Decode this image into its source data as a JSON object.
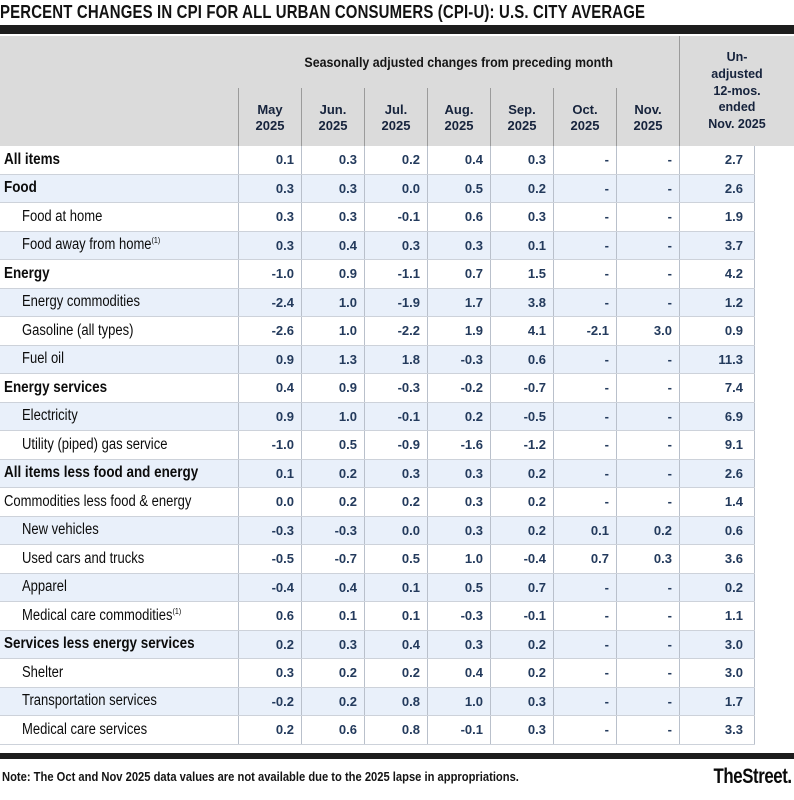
{
  "title": "PERCENT CHANGES IN CPI FOR ALL URBAN CONSUMERS (CPI-U): U.S. CITY AVERAGE",
  "header": {
    "group_label": "Seasonally adjusted changes from preceding month",
    "columns": [
      {
        "month": "May",
        "year": "2025"
      },
      {
        "month": "Jun.",
        "year": "2025"
      },
      {
        "month": "Jul.",
        "year": "2025"
      },
      {
        "month": "Aug.",
        "year": "2025"
      },
      {
        "month": "Sep.",
        "year": "2025"
      },
      {
        "month": "Oct.",
        "year": "2025"
      },
      {
        "month": "Nov.",
        "year": "2025"
      }
    ],
    "unadjusted_label_lines": [
      "Un-",
      "adjusted",
      "12-mos.",
      "ended",
      "Nov. 2025"
    ]
  },
  "chart_data": {
    "type": "table",
    "title": "Percent changes in CPI for All Urban Consumers (CPI-U): U.S. City Average",
    "columns": [
      "May 2025",
      "Jun. 2025",
      "Jul. 2025",
      "Aug. 2025",
      "Sep. 2025",
      "Oct. 2025",
      "Nov. 2025",
      "Un-adjusted 12-mos. ended Nov. 2025"
    ],
    "rows": [
      {
        "label": "All items",
        "bold": true,
        "indent": false,
        "values": [
          "0.1",
          "0.3",
          "0.2",
          "0.4",
          "0.3",
          "-",
          "-",
          "2.7"
        ]
      },
      {
        "label": "Food",
        "bold": true,
        "indent": false,
        "values": [
          "0.3",
          "0.3",
          "0.0",
          "0.5",
          "0.2",
          "-",
          "-",
          "2.6"
        ]
      },
      {
        "label": "Food at home",
        "bold": false,
        "indent": true,
        "values": [
          "0.3",
          "0.3",
          "-0.1",
          "0.6",
          "0.3",
          "-",
          "-",
          "1.9"
        ]
      },
      {
        "label": "Food away from home",
        "sup": "(1)",
        "bold": false,
        "indent": true,
        "values": [
          "0.3",
          "0.4",
          "0.3",
          "0.3",
          "0.1",
          "-",
          "-",
          "3.7"
        ]
      },
      {
        "label": "Energy",
        "bold": true,
        "indent": false,
        "values": [
          "-1.0",
          "0.9",
          "-1.1",
          "0.7",
          "1.5",
          "-",
          "-",
          "4.2"
        ]
      },
      {
        "label": "Energy commodities",
        "bold": false,
        "indent": true,
        "values": [
          "-2.4",
          "1.0",
          "-1.9",
          "1.7",
          "3.8",
          "-",
          "-",
          "1.2"
        ]
      },
      {
        "label": "Gasoline (all types)",
        "bold": false,
        "indent": true,
        "values": [
          "-2.6",
          "1.0",
          "-2.2",
          "1.9",
          "4.1",
          "-2.1",
          "3.0",
          "0.9"
        ]
      },
      {
        "label": "Fuel oil",
        "bold": false,
        "indent": true,
        "values": [
          "0.9",
          "1.3",
          "1.8",
          "-0.3",
          "0.6",
          "-",
          "-",
          "11.3"
        ]
      },
      {
        "label": "Energy services",
        "bold": true,
        "indent": false,
        "values": [
          "0.4",
          "0.9",
          "-0.3",
          "-0.2",
          "-0.7",
          "-",
          "-",
          "7.4"
        ]
      },
      {
        "label": "Electricity",
        "bold": false,
        "indent": true,
        "values": [
          "0.9",
          "1.0",
          "-0.1",
          "0.2",
          "-0.5",
          "-",
          "-",
          "6.9"
        ]
      },
      {
        "label": "Utility (piped) gas service",
        "bold": false,
        "indent": true,
        "values": [
          "-1.0",
          "0.5",
          "-0.9",
          "-1.6",
          "-1.2",
          "-",
          "-",
          "9.1"
        ]
      },
      {
        "label": "All items less food and energy",
        "bold": true,
        "indent": false,
        "values": [
          "0.1",
          "0.2",
          "0.3",
          "0.3",
          "0.2",
          "-",
          "-",
          "2.6"
        ]
      },
      {
        "label": "Commodities less food & energy",
        "bold": false,
        "indent": false,
        "values": [
          "0.0",
          "0.2",
          "0.2",
          "0.3",
          "0.2",
          "-",
          "-",
          "1.4"
        ]
      },
      {
        "label": "New vehicles",
        "bold": false,
        "indent": true,
        "values": [
          "-0.3",
          "-0.3",
          "0.0",
          "0.3",
          "0.2",
          "0.1",
          "0.2",
          "0.6"
        ]
      },
      {
        "label": "Used cars and trucks",
        "bold": false,
        "indent": true,
        "values": [
          "-0.5",
          "-0.7",
          "0.5",
          "1.0",
          "-0.4",
          "0.7",
          "0.3",
          "3.6"
        ]
      },
      {
        "label": "Apparel",
        "bold": false,
        "indent": true,
        "values": [
          "-0.4",
          "0.4",
          "0.1",
          "0.5",
          "0.7",
          "-",
          "-",
          "0.2"
        ]
      },
      {
        "label": "Medical care commodities",
        "sup": "(1)",
        "bold": false,
        "indent": true,
        "values": [
          "0.6",
          "0.1",
          "0.1",
          "-0.3",
          "-0.1",
          "-",
          "-",
          "1.1"
        ]
      },
      {
        "label": "Services less energy services",
        "bold": true,
        "indent": false,
        "values": [
          "0.2",
          "0.3",
          "0.4",
          "0.3",
          "0.2",
          "-",
          "-",
          "3.0"
        ]
      },
      {
        "label": "Shelter",
        "bold": false,
        "indent": true,
        "values": [
          "0.3",
          "0.2",
          "0.2",
          "0.4",
          "0.2",
          "-",
          "-",
          "3.0"
        ]
      },
      {
        "label": "Transportation services",
        "bold": false,
        "indent": true,
        "values": [
          "-0.2",
          "0.2",
          "0.8",
          "1.0",
          "0.3",
          "-",
          "-",
          "1.7"
        ]
      },
      {
        "label": "Medical care services",
        "bold": false,
        "indent": true,
        "values": [
          "0.2",
          "0.6",
          "0.8",
          "-0.1",
          "0.3",
          "-",
          "-",
          "3.3"
        ]
      }
    ]
  },
  "footer": {
    "note": "Note: The Oct and Nov 2025 data values are not available due to the 2025 lapse in appropriations.",
    "brand": "TheStreet."
  },
  "colors": {
    "header_band": "#dbdbdb",
    "stripe": "#e9f0fa",
    "number_text": "#233a5c",
    "bar": "#1d1d1d"
  }
}
